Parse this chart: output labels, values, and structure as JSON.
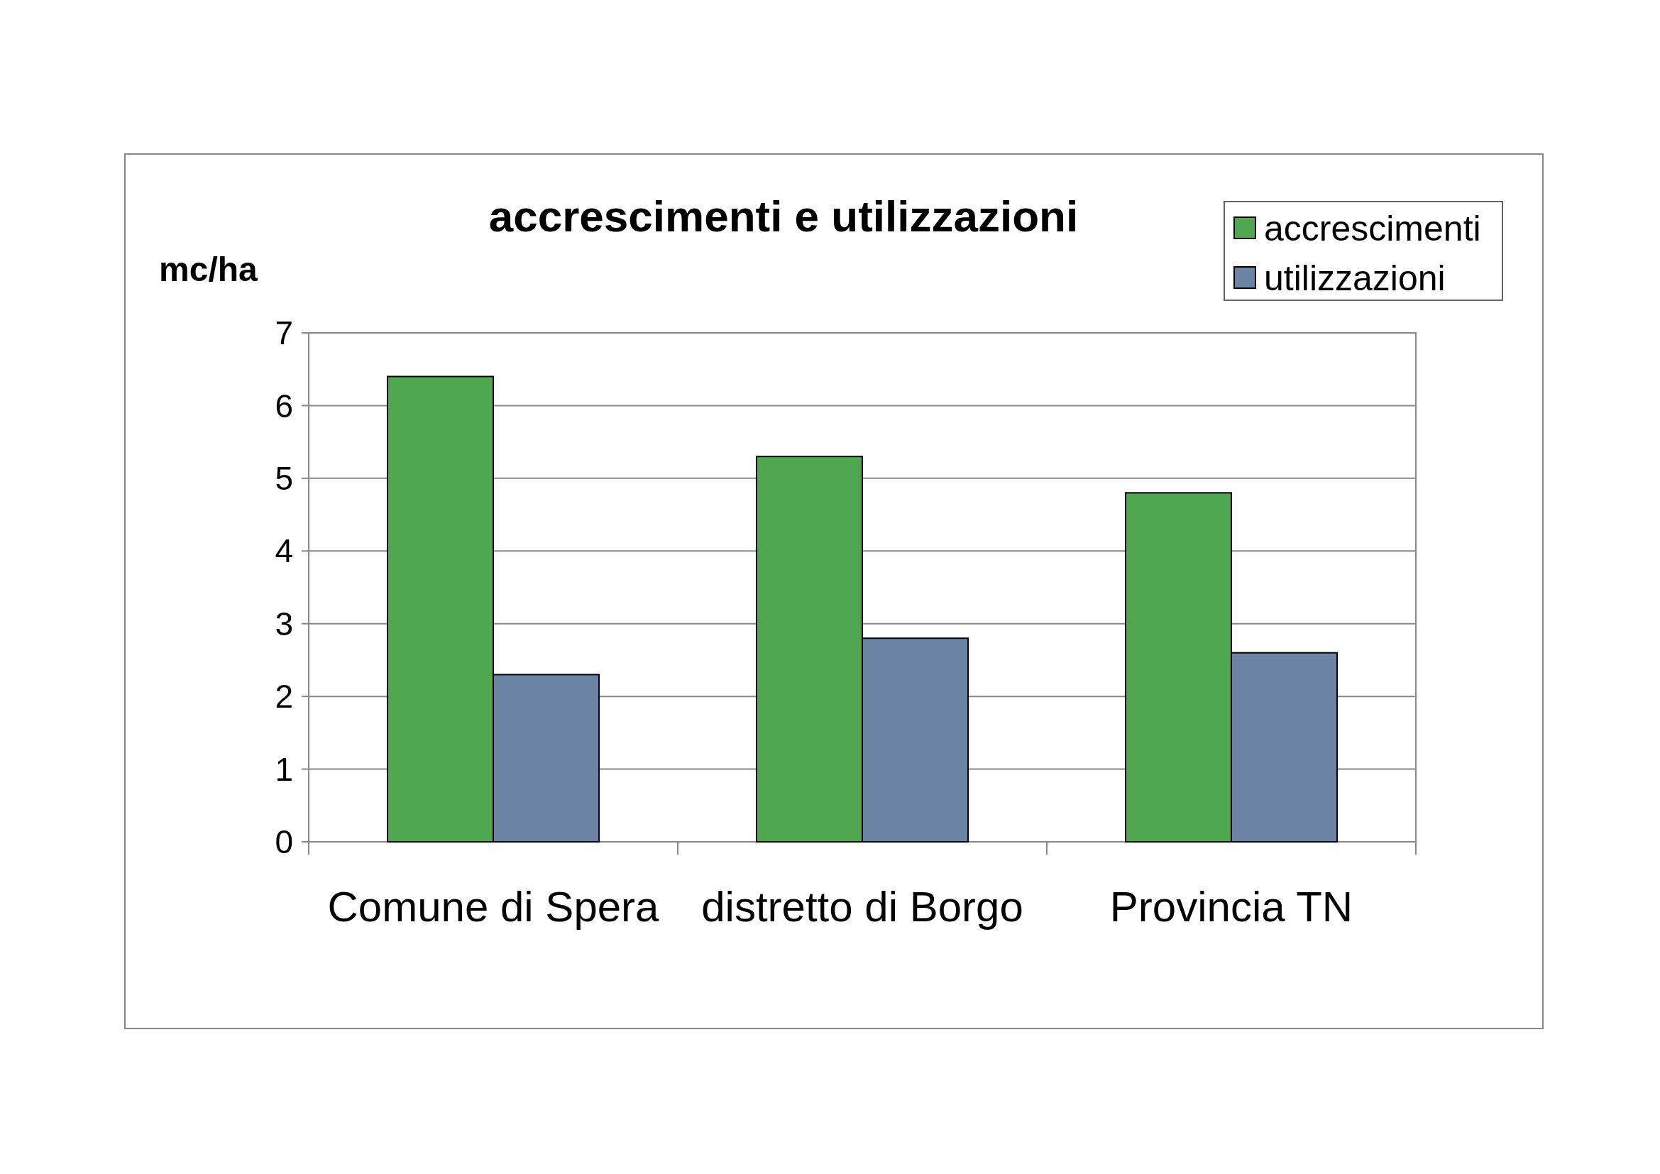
{
  "chart_data": {
    "type": "bar",
    "title": "accrescimenti e utilizzazioni",
    "ylabel": "mc/ha",
    "categories": [
      "Comune di Spera",
      "distretto di Borgo",
      "Provincia TN"
    ],
    "series": [
      {
        "name": "accrescimenti",
        "color": "#4fa84f",
        "values": [
          6.4,
          5.3,
          4.8
        ]
      },
      {
        "name": "utilizzazioni",
        "color": "#6b84a3",
        "values": [
          2.3,
          2.8,
          2.6
        ]
      }
    ],
    "ylim": [
      0,
      7
    ],
    "yticks": [
      0,
      1,
      2,
      3,
      4,
      5,
      6,
      7
    ],
    "grid": "y",
    "legend": "top right"
  }
}
